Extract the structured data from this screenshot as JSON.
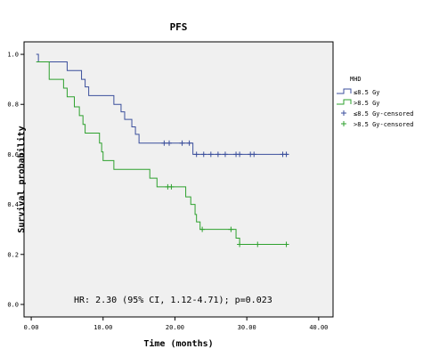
{
  "chart_data": {
    "type": "line",
    "title": "PFS",
    "xlabel": "Time (months)",
    "ylabel": "Survival probability",
    "xlim": [
      -1,
      42
    ],
    "ylim": [
      -0.05,
      1.05
    ],
    "x_ticks": [
      "0.00",
      "10.00",
      "20.00",
      "30.00",
      "40.00"
    ],
    "x_tick_values": [
      0,
      10,
      20,
      30,
      40
    ],
    "y_ticks": [
      "0.0",
      "0.2",
      "0.4",
      "0.6",
      "0.8",
      "1.0"
    ],
    "y_tick_values": [
      0,
      0.2,
      0.4,
      0.6,
      0.8,
      1.0
    ],
    "legend_title": "MHD",
    "legend_position": "right",
    "annotation": "HR: 2.30 (95% CI, 1.12-4.71); p=0.023",
    "series": [
      {
        "name": "≤8.5 Gy",
        "color": "#3b4f9c",
        "steps": [
          [
            0.7,
            1.0
          ],
          [
            1.0,
            0.97
          ],
          [
            5.0,
            0.935
          ],
          [
            7.0,
            0.9
          ],
          [
            7.5,
            0.87
          ],
          [
            8.0,
            0.835
          ],
          [
            11.5,
            0.8
          ],
          [
            12.5,
            0.77
          ],
          [
            13.0,
            0.74
          ],
          [
            14.0,
            0.71
          ],
          [
            14.5,
            0.68
          ],
          [
            15.0,
            0.645
          ],
          [
            22.5,
            0.6
          ],
          [
            35.8,
            0.6
          ]
        ],
        "censored": [
          18.5,
          19.2,
          21.0,
          22.0,
          23.0,
          24.0,
          25.0,
          26.0,
          27.0,
          28.5,
          29.0,
          30.5,
          31.0,
          35.0,
          35.5
        ]
      },
      {
        "name": ">8.5 Gy",
        "color": "#2ea12e",
        "steps": [
          [
            0.7,
            0.97
          ],
          [
            2.5,
            0.9
          ],
          [
            4.5,
            0.865
          ],
          [
            5.0,
            0.83
          ],
          [
            6.0,
            0.79
          ],
          [
            6.7,
            0.755
          ],
          [
            7.2,
            0.72
          ],
          [
            7.5,
            0.685
          ],
          [
            9.5,
            0.645
          ],
          [
            9.8,
            0.61
          ],
          [
            10.0,
            0.575
          ],
          [
            11.5,
            0.54
          ],
          [
            16.5,
            0.505
          ],
          [
            17.5,
            0.47
          ],
          [
            21.5,
            0.43
          ],
          [
            22.2,
            0.4
          ],
          [
            22.8,
            0.36
          ],
          [
            23.0,
            0.33
          ],
          [
            23.5,
            0.3
          ],
          [
            28.5,
            0.265
          ],
          [
            29.0,
            0.24
          ],
          [
            35.8,
            0.24
          ]
        ],
        "censored": [
          19.0,
          19.5,
          23.8,
          27.8,
          29.0,
          31.5,
          35.5
        ]
      }
    ],
    "legend_entries": [
      {
        "label": "≤8.5 Gy",
        "kind": "line",
        "color": "#3b4f9c"
      },
      {
        "label": ">8.5 Gy",
        "kind": "line",
        "color": "#2ea12e"
      },
      {
        "label": "≤8.5 Gy-censored",
        "kind": "censor",
        "color": "#3b4f9c"
      },
      {
        "label": ">8.5 Gy-censored",
        "kind": "censor",
        "color": "#2ea12e"
      }
    ]
  }
}
